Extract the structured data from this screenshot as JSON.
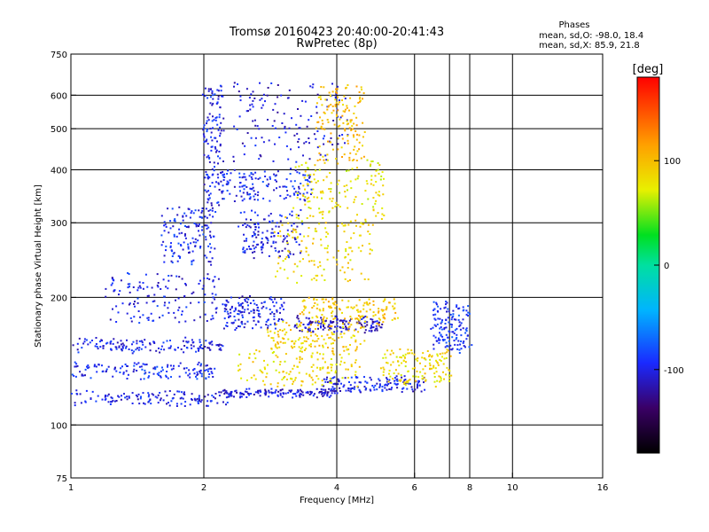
{
  "header": {
    "title_line1": "Tromsø 20160423 20:40:00-20:41:43",
    "title_line2": "RwPretec (8p)"
  },
  "stats": {
    "heading": "Phases",
    "line_o": "mean, sd,O: -98.0, 18.4",
    "line_x": "mean, sd,X: 85.9, 21.8"
  },
  "chart_data": {
    "type": "scatter",
    "title": "Tromsø 20160423 20:40:00-20:41:43",
    "subtitle": "RwPretec (8p)",
    "xlabel": "Frequency [MHz]",
    "ylabel": "Stationary phase Virtual Height [km]",
    "x_scale": "log",
    "y_scale": "log",
    "xlim": [
      1,
      16
    ],
    "ylim": [
      75,
      750
    ],
    "x_ticks": [
      1,
      2,
      4,
      6,
      8,
      10,
      16
    ],
    "x_tick_labels": [
      "1",
      "2",
      "4",
      "6",
      "8",
      "10",
      "16"
    ],
    "x_grid": [
      2,
      4,
      6,
      7.2,
      8,
      10
    ],
    "y_ticks": [
      75,
      100,
      200,
      300,
      400,
      500,
      600,
      750
    ],
    "y_tick_labels": [
      "75",
      "100",
      "200",
      "300",
      "400",
      "500",
      "600",
      "750"
    ],
    "grid": true,
    "colorbar": {
      "label": "[deg]",
      "range": [
        -180,
        180
      ],
      "ticks": [
        100,
        0,
        -100
      ],
      "tick_labels": [
        "100",
        "0",
        "-100"
      ]
    },
    "traces": [
      {
        "x_start": 1.0,
        "x_end": 2.3,
        "h_start": 112,
        "h_end": 120,
        "phase": -100
      },
      {
        "x_start": 2.2,
        "x_end": 4.0,
        "h_start": 118,
        "h_end": 121,
        "phase": -105
      },
      {
        "x_start": 3.7,
        "x_end": 6.3,
        "h_start": 121,
        "h_end": 130,
        "phase": -100
      },
      {
        "x_start": 1.0,
        "x_end": 2.1,
        "h_start": 130,
        "h_end": 140,
        "phase": -95
      },
      {
        "x_start": 1.0,
        "x_end": 2.2,
        "h_start": 150,
        "h_end": 160,
        "phase": -100
      },
      {
        "x_start": 1.2,
        "x_end": 2.15,
        "h_start": 175,
        "h_end": 230,
        "phase": -100
      },
      {
        "x_start": 1.6,
        "x_end": 2.1,
        "h_start": 240,
        "h_end": 330,
        "phase": -95
      },
      {
        "x_start": 2.0,
        "x_end": 2.2,
        "h_start": 330,
        "h_end": 640,
        "phase": -100
      },
      {
        "x_start": 2.2,
        "x_end": 3.5,
        "h_start": 340,
        "h_end": 400,
        "phase": -95
      },
      {
        "x_start": 2.4,
        "x_end": 3.3,
        "h_start": 250,
        "h_end": 320,
        "phase": -100
      },
      {
        "x_start": 2.3,
        "x_end": 4.2,
        "h_start": 420,
        "h_end": 650,
        "phase": -105
      },
      {
        "x_start": 2.2,
        "x_end": 3.0,
        "h_start": 170,
        "h_end": 200,
        "phase": -100
      },
      {
        "x_start": 3.2,
        "x_end": 5.0,
        "h_start": 168,
        "h_end": 180,
        "phase": -110
      },
      {
        "x_start": 2.4,
        "x_end": 4.5,
        "h_start": 125,
        "h_end": 150,
        "phase": 85
      },
      {
        "x_start": 2.8,
        "x_end": 4.6,
        "h_start": 150,
        "h_end": 175,
        "phase": 90
      },
      {
        "x_start": 3.3,
        "x_end": 5.5,
        "h_start": 175,
        "h_end": 200,
        "phase": 95
      },
      {
        "x_start": 2.9,
        "x_end": 4.9,
        "h_start": 220,
        "h_end": 310,
        "phase": 85
      },
      {
        "x_start": 3.2,
        "x_end": 5.1,
        "h_start": 310,
        "h_end": 420,
        "phase": 80
      },
      {
        "x_start": 3.6,
        "x_end": 4.6,
        "h_start": 420,
        "h_end": 640,
        "phase": 100
      },
      {
        "x_start": 5.0,
        "x_end": 7.2,
        "h_start": 125,
        "h_end": 150,
        "phase": 85
      },
      {
        "x_start": 6.5,
        "x_end": 8.0,
        "h_start": 150,
        "h_end": 195,
        "phase": -90
      }
    ]
  }
}
